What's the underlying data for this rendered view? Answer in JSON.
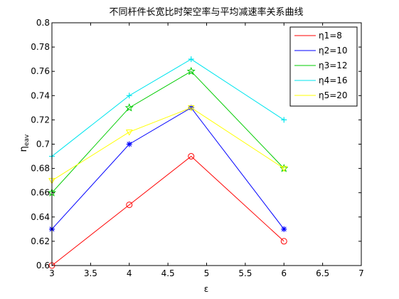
{
  "chart_data": {
    "type": "line",
    "title": "不同杆件长宽比时架空率与平均减速率关系曲线",
    "xlabel": "ε",
    "ylabel_main": "η",
    "ylabel_sub": "eav",
    "xlim": [
      3,
      7
    ],
    "ylim": [
      0.6,
      0.8
    ],
    "xticks": [
      "3",
      "3.5",
      "4",
      "4.5",
      "5",
      "5.5",
      "6",
      "6.5",
      "7"
    ],
    "yticks": [
      "0.6",
      "0.62",
      "0.64",
      "0.66",
      "0.68",
      "0.7",
      "0.72",
      "0.74",
      "0.76",
      "0.78",
      "0.8"
    ],
    "grid": false,
    "legend_position": "top-right",
    "x": [
      3,
      4,
      4.8,
      6
    ],
    "series": [
      {
        "name": "η1=8",
        "values": [
          0.6,
          0.65,
          0.69,
          0.62
        ],
        "color": "#ff0000",
        "marker": "circle"
      },
      {
        "name": "η2=10",
        "values": [
          0.63,
          0.7,
          0.73,
          0.63
        ],
        "color": "#0000ff",
        "marker": "asterisk"
      },
      {
        "name": "η3=12",
        "values": [
          0.66,
          0.73,
          0.76,
          0.68
        ],
        "color": "#00cc00",
        "marker": "star"
      },
      {
        "name": "η4=16",
        "values": [
          0.69,
          0.74,
          0.77,
          0.72
        ],
        "color": "#00e5ee",
        "marker": "plus"
      },
      {
        "name": "η5=20",
        "values": [
          0.67,
          0.71,
          0.73,
          0.68
        ],
        "color": "#ffff00",
        "marker": "triangle-down"
      }
    ]
  }
}
